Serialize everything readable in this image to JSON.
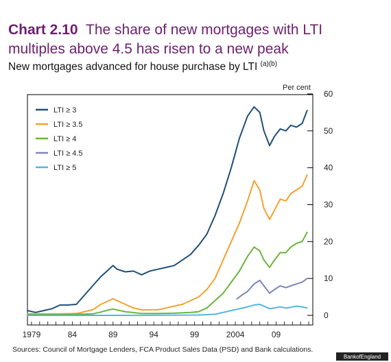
{
  "header": {
    "chart_number": "Chart 2.10",
    "title_line1": "The share of new mortgages with LTI",
    "title_line2": "multiples above 4.5 has risen to a new peak",
    "subtitle": "New mortgages advanced for house purchase by LTI",
    "subtitle_sup": "(a)(b)"
  },
  "source_note": "Sources: Council of Mortgage Lenders, FCA Product Sales Data (PSD) and Bank calculations.",
  "credit": "BankofEngland",
  "colors": {
    "LTI ≥ 3": "#1f4e79",
    "LTI ≥ 3.5": "#f4a030",
    "LTI ≥ 4": "#6ab43c",
    "LTI ≥ 4.5": "#7b86b8",
    "LTI ≥ 5": "#52b6e0"
  },
  "chart_data": {
    "type": "line",
    "ylabel": "Per cent",
    "ylim": [
      0,
      60
    ],
    "yticks": [
      "0",
      "10",
      "20",
      "30",
      "40",
      "50",
      "60"
    ],
    "xlim": [
      1978.5,
      2013.5
    ],
    "xticks": [
      {
        "x": 1979,
        "label": "1979"
      },
      {
        "x": 1984,
        "label": "84"
      },
      {
        "x": 1989,
        "label": "89"
      },
      {
        "x": 1994,
        "label": "94"
      },
      {
        "x": 1999,
        "label": "99"
      },
      {
        "x": 2004,
        "label": "2004"
      },
      {
        "x": 2009,
        "label": "09"
      }
    ],
    "legend_position": "top-left",
    "grid": false,
    "series": [
      {
        "name": "LTI ≥ 3",
        "points": [
          [
            1978.5,
            1.3
          ],
          [
            1979.5,
            0.8
          ],
          [
            1980.5,
            1.3
          ],
          [
            1981.5,
            1.8
          ],
          [
            1982.5,
            2.8
          ],
          [
            1983.5,
            2.8
          ],
          [
            1984.5,
            3.0
          ],
          [
            1985.5,
            5.5
          ],
          [
            1986.5,
            8.0
          ],
          [
            1987.5,
            10.5
          ],
          [
            1988.5,
            12.5
          ],
          [
            1989.0,
            13.5
          ],
          [
            1989.5,
            12.5
          ],
          [
            1990.5,
            11.8
          ],
          [
            1991.5,
            12.0
          ],
          [
            1992.5,
            11.0
          ],
          [
            1993.5,
            12.0
          ],
          [
            1994.5,
            12.5
          ],
          [
            1995.5,
            13.0
          ],
          [
            1996.5,
            13.5
          ],
          [
            1997.5,
            15.0
          ],
          [
            1998.5,
            16.5
          ],
          [
            1999.5,
            19.0
          ],
          [
            2000.5,
            22.0
          ],
          [
            2001.5,
            27.0
          ],
          [
            2002.5,
            33.0
          ],
          [
            2003.5,
            40.0
          ],
          [
            2004.5,
            48.0
          ],
          [
            2005.5,
            54.0
          ],
          [
            2006.3,
            56.5
          ],
          [
            2007.0,
            55.0
          ],
          [
            2007.5,
            50.0
          ],
          [
            2008.2,
            46.0
          ],
          [
            2008.8,
            48.5
          ],
          [
            2009.5,
            50.5
          ],
          [
            2010.2,
            50.0
          ],
          [
            2010.8,
            51.5
          ],
          [
            2011.5,
            51.0
          ],
          [
            2012.2,
            52.0
          ],
          [
            2012.8,
            55.5
          ]
        ]
      },
      {
        "name": "LTI ≥ 3.5",
        "points": [
          [
            1978.5,
            0.4
          ],
          [
            1980.5,
            0.4
          ],
          [
            1982.5,
            0.4
          ],
          [
            1984.5,
            0.5
          ],
          [
            1985.5,
            1.0
          ],
          [
            1986.5,
            1.5
          ],
          [
            1987.5,
            3.0
          ],
          [
            1988.5,
            4.0
          ],
          [
            1989.0,
            4.5
          ],
          [
            1989.5,
            4.0
          ],
          [
            1990.5,
            3.0
          ],
          [
            1991.5,
            2.0
          ],
          [
            1992.5,
            1.5
          ],
          [
            1993.5,
            1.5
          ],
          [
            1994.5,
            1.5
          ],
          [
            1995.5,
            2.0
          ],
          [
            1996.5,
            2.5
          ],
          [
            1997.5,
            3.0
          ],
          [
            1998.5,
            4.0
          ],
          [
            1999.5,
            5.0
          ],
          [
            2000.5,
            7.0
          ],
          [
            2001.5,
            10.0
          ],
          [
            2002.5,
            15.0
          ],
          [
            2003.5,
            20.0
          ],
          [
            2004.5,
            25.0
          ],
          [
            2005.5,
            31.0
          ],
          [
            2006.3,
            36.5
          ],
          [
            2007.0,
            34.0
          ],
          [
            2007.5,
            29.0
          ],
          [
            2008.2,
            26.0
          ],
          [
            2008.8,
            28.5
          ],
          [
            2009.5,
            31.5
          ],
          [
            2010.2,
            31.0
          ],
          [
            2010.8,
            33.0
          ],
          [
            2011.5,
            34.0
          ],
          [
            2012.2,
            35.0
          ],
          [
            2012.8,
            38.0
          ]
        ]
      },
      {
        "name": "LTI ≥ 4",
        "points": [
          [
            1978.5,
            0.2
          ],
          [
            1982.5,
            0.2
          ],
          [
            1986.5,
            0.4
          ],
          [
            1987.5,
            0.9
          ],
          [
            1988.5,
            1.5
          ],
          [
            1989.0,
            1.7
          ],
          [
            1990.5,
            1.0
          ],
          [
            1992.5,
            0.5
          ],
          [
            1994.5,
            0.5
          ],
          [
            1996.5,
            0.6
          ],
          [
            1998.5,
            0.8
          ],
          [
            1999.5,
            1.0
          ],
          [
            2000.5,
            2.0
          ],
          [
            2001.5,
            4.0
          ],
          [
            2002.5,
            6.0
          ],
          [
            2003.5,
            9.0
          ],
          [
            2004.5,
            12.0
          ],
          [
            2005.5,
            16.0
          ],
          [
            2006.3,
            18.5
          ],
          [
            2007.0,
            17.5
          ],
          [
            2007.5,
            15.0
          ],
          [
            2008.2,
            13.0
          ],
          [
            2008.8,
            15.0
          ],
          [
            2009.5,
            17.0
          ],
          [
            2010.2,
            17.0
          ],
          [
            2010.8,
            18.5
          ],
          [
            2011.5,
            19.5
          ],
          [
            2012.2,
            20.0
          ],
          [
            2012.8,
            22.5
          ]
        ]
      },
      {
        "name": "LTI ≥ 4.5",
        "points": [
          [
            2004.2,
            4.5
          ],
          [
            2004.8,
            5.5
          ],
          [
            2005.5,
            6.5
          ],
          [
            2006.3,
            8.5
          ],
          [
            2007.0,
            9.5
          ],
          [
            2007.5,
            8.0
          ],
          [
            2008.2,
            6.0
          ],
          [
            2008.8,
            7.0
          ],
          [
            2009.5,
            8.0
          ],
          [
            2010.2,
            7.5
          ],
          [
            2010.8,
            8.0
          ],
          [
            2011.5,
            8.5
          ],
          [
            2012.2,
            9.0
          ],
          [
            2012.8,
            10.0
          ]
        ]
      },
      {
        "name": "LTI ≥ 5",
        "points": [
          [
            1978.5,
            0.0
          ],
          [
            1990.5,
            0.0
          ],
          [
            1999.5,
            0.1
          ],
          [
            2001.5,
            0.3
          ],
          [
            2002.5,
            0.8
          ],
          [
            2003.5,
            1.3
          ],
          [
            2004.5,
            1.8
          ],
          [
            2005.5,
            2.3
          ],
          [
            2006.3,
            2.8
          ],
          [
            2007.0,
            3.0
          ],
          [
            2007.5,
            2.5
          ],
          [
            2008.2,
            1.8
          ],
          [
            2008.8,
            2.0
          ],
          [
            2009.5,
            2.3
          ],
          [
            2010.2,
            2.0
          ],
          [
            2010.8,
            2.2
          ],
          [
            2011.5,
            2.5
          ],
          [
            2012.2,
            2.3
          ],
          [
            2012.8,
            2.0
          ]
        ]
      }
    ]
  }
}
